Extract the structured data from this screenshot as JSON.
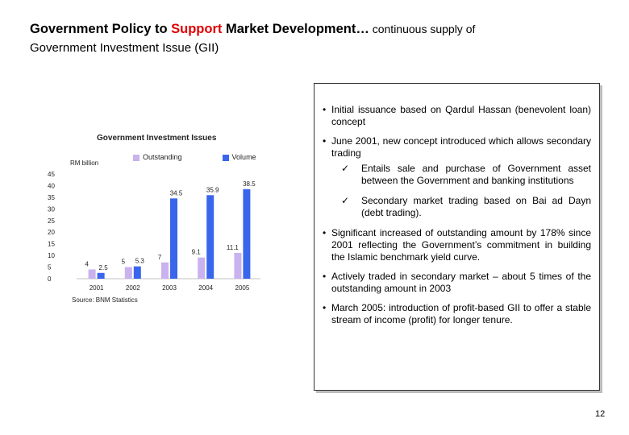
{
  "title": {
    "part1": "Government Policy to ",
    "accent": "Support",
    "part2": " Market Development…",
    "small": " continuous supply of",
    "line2": "Government Investment Issue (GII)"
  },
  "colors": {
    "outstanding": "#c9b2ee",
    "volume": "#3a66ec",
    "accent": "#e00000"
  },
  "chart_data": {
    "type": "bar",
    "title": "Government Investment Issues",
    "ylabel": "RM billion",
    "categories": [
      "2001",
      "2002",
      "2003",
      "2004",
      "2005"
    ],
    "series": [
      {
        "name": "Outstanding",
        "values": [
          4,
          5,
          7,
          9.1,
          11.1
        ],
        "labels": [
          "4",
          "5",
          "7",
          "9.1",
          "11.1"
        ]
      },
      {
        "name": "Volume",
        "values": [
          2.5,
          5.3,
          34.5,
          35.9,
          38.5
        ],
        "labels": [
          "2.5",
          "5.3",
          "34.5",
          "35.9",
          "38.5"
        ]
      }
    ],
    "ylim": [
      0,
      45
    ],
    "yticks": [
      0,
      5,
      10,
      15,
      20,
      25,
      30,
      35,
      40,
      45
    ],
    "legend": "top",
    "grid": false,
    "source": "Source: BNM Statistics"
  },
  "bullets": {
    "b1": "Initial issuance based on Qardul Hassan (benevolent loan) concept",
    "b2": "June 2001, new concept introduced which allows secondary trading",
    "c1": "Entails sale and purchase of Government asset between the Government and banking institutions",
    "c2": "Secondary market trading based on Bai ad Dayn (debt trading).",
    "b3": "Significant increased of outstanding amount by 178% since 2001 reflecting the Government’s commitment in building the Islamic benchmark yield curve.",
    "b4": "Actively traded in secondary market – about 5 times of the outstanding amount in 2003",
    "b5": "March 2005: introduction of profit-based GII to offer a stable stream of income (profit) for longer tenure."
  },
  "page_number": "12"
}
